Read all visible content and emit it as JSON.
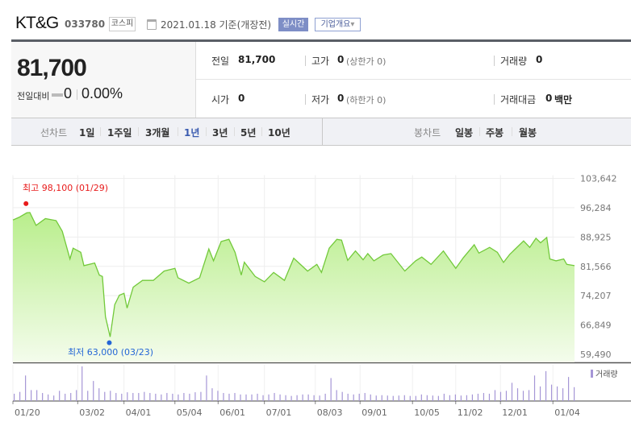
{
  "header": {
    "company": "KT&G",
    "code": "033780",
    "market": "코스피",
    "date_text": "2021.01.18 기준(개장전)",
    "realtime_label": "실시간",
    "overview_label": "기업개요",
    "overview_arrow": "▾",
    "calendar_icon": "calendar-clock-icon"
  },
  "summary": {
    "price": "81,700",
    "change_label": "전일대비",
    "change_value": "0",
    "change_pct": "0.00%",
    "prev_close_label": "전일",
    "prev_close": "81,700",
    "high_label": "고가",
    "high": "0",
    "upper_limit": "(상한가 0)",
    "volume_label": "거래량",
    "volume": "0",
    "open_label": "시가",
    "open": "0",
    "low_label": "저가",
    "low": "0",
    "lower_limit": "(하한가 0)",
    "amount_label": "거래대금",
    "amount": "0",
    "amount_unit": "백만"
  },
  "chart_types": {
    "line_label": "선차트",
    "periods": [
      "1일",
      "1주일",
      "3개월",
      "1년",
      "3년",
      "5년",
      "10년"
    ],
    "active_period": "1년",
    "candle_label": "봉차트",
    "candles": [
      "일봉",
      "주봉",
      "월봉"
    ]
  },
  "chart_data": {
    "type": "area",
    "colors": {
      "line": "#72c93a",
      "fill_top": "#b9ee8c",
      "fill_bottom": "#f4fcec",
      "volume": "#a596d6",
      "high": "#e81b1b",
      "low": "#2466d6"
    },
    "x_start": "2020-01-20",
    "x_end": "2021-01-18",
    "x_ticks": [
      {
        "date": "2020-01-20",
        "label": "01/20"
      },
      {
        "date": "2020-03-02",
        "label": "03/02"
      },
      {
        "date": "2020-04-01",
        "label": "04/01"
      },
      {
        "date": "2020-05-04",
        "label": "05/04"
      },
      {
        "date": "2020-06-01",
        "label": "06/01"
      },
      {
        "date": "2020-07-01",
        "label": "07/01"
      },
      {
        "date": "2020-08-03",
        "label": "08/03"
      },
      {
        "date": "2020-09-01",
        "label": "09/01"
      },
      {
        "date": "2020-10-05",
        "label": "10/05"
      },
      {
        "date": "2020-11-02",
        "label": "11/02"
      },
      {
        "date": "2020-12-01",
        "label": "12/01"
      },
      {
        "date": "2021-01-04",
        "label": "01/04"
      }
    ],
    "y_ticks": [
      "103,642",
      "96,284",
      "88,925",
      "81,566",
      "74,207",
      "66,849",
      "59,490"
    ],
    "ylim": [
      59490,
      103642
    ],
    "grid": true,
    "price_series": [
      [
        "2020-01-20",
        93200
      ],
      [
        "2020-01-24",
        93870
      ],
      [
        "2020-01-29",
        95000
      ],
      [
        "2020-01-31",
        95080
      ],
      [
        "2020-02-04",
        91850
      ],
      [
        "2020-02-10",
        93530
      ],
      [
        "2020-02-17",
        93060
      ],
      [
        "2020-02-21",
        90360
      ],
      [
        "2020-02-26",
        83420
      ],
      [
        "2020-02-28",
        86120
      ],
      [
        "2020-03-04",
        85100
      ],
      [
        "2020-03-06",
        81740
      ],
      [
        "2020-03-13",
        82410
      ],
      [
        "2020-03-16",
        79380
      ],
      [
        "2020-03-18",
        79040
      ],
      [
        "2020-03-20",
        68930
      ],
      [
        "2020-03-23",
        63870
      ],
      [
        "2020-03-26",
        71960
      ],
      [
        "2020-03-29",
        74320
      ],
      [
        "2020-04-01",
        74790
      ],
      [
        "2020-04-03",
        71080
      ],
      [
        "2020-04-07",
        76340
      ],
      [
        "2020-04-13",
        78030
      ],
      [
        "2020-04-20",
        78030
      ],
      [
        "2020-04-27",
        80390
      ],
      [
        "2020-05-04",
        81060
      ],
      [
        "2020-05-06",
        78700
      ],
      [
        "2020-05-13",
        77350
      ],
      [
        "2020-05-20",
        78700
      ],
      [
        "2020-05-26",
        85920
      ],
      [
        "2020-05-29",
        82950
      ],
      [
        "2020-06-03",
        87800
      ],
      [
        "2020-06-08",
        88340
      ],
      [
        "2020-06-12",
        85100
      ],
      [
        "2020-06-16",
        79380
      ],
      [
        "2020-06-18",
        82610
      ],
      [
        "2020-06-25",
        79040
      ],
      [
        "2020-07-01",
        77690
      ],
      [
        "2020-07-07",
        80050
      ],
      [
        "2020-07-14",
        78030
      ],
      [
        "2020-07-20",
        83620
      ],
      [
        "2020-07-29",
        80390
      ],
      [
        "2020-08-04",
        82070
      ],
      [
        "2020-08-07",
        80050
      ],
      [
        "2020-08-12",
        86120
      ],
      [
        "2020-08-17",
        88340
      ],
      [
        "2020-08-20",
        88140
      ],
      [
        "2020-08-24",
        83080
      ],
      [
        "2020-08-29",
        85440
      ],
      [
        "2020-09-03",
        83220
      ],
      [
        "2020-09-06",
        84770
      ],
      [
        "2020-09-10",
        82950
      ],
      [
        "2020-09-16",
        84430
      ],
      [
        "2020-09-21",
        84770
      ],
      [
        "2020-09-30",
        80390
      ],
      [
        "2020-10-07",
        82950
      ],
      [
        "2020-10-11",
        83890
      ],
      [
        "2020-10-17",
        82070
      ],
      [
        "2020-10-25",
        85440
      ],
      [
        "2020-11-02",
        81060
      ],
      [
        "2020-11-07",
        83760
      ],
      [
        "2020-11-14",
        86990
      ],
      [
        "2020-11-17",
        84900
      ],
      [
        "2020-11-24",
        86320
      ],
      [
        "2020-11-29",
        85100
      ],
      [
        "2020-12-03",
        82540
      ],
      [
        "2020-12-07",
        84570
      ],
      [
        "2020-12-16",
        87940
      ],
      [
        "2020-12-20",
        86320
      ],
      [
        "2020-12-24",
        88610
      ],
      [
        "2020-12-27",
        87470
      ],
      [
        "2020-12-31",
        88810
      ],
      [
        "2021-01-02",
        83420
      ],
      [
        "2021-01-06",
        82950
      ],
      [
        "2021-01-11",
        83420
      ],
      [
        "2021-01-13",
        82070
      ],
      [
        "2021-01-18",
        81740
      ]
    ],
    "volume_relative": [
      20,
      25,
      70,
      30,
      30,
      22,
      18,
      15,
      28,
      20,
      22,
      30,
      95,
      28,
      55,
      35,
      25,
      28,
      22,
      20,
      24,
      22,
      22,
      25,
      22,
      20,
      18,
      22,
      20,
      18,
      22,
      20,
      24,
      25,
      70,
      35,
      28,
      22,
      20,
      22,
      18,
      18,
      18,
      20,
      16,
      18,
      22,
      18,
      16,
      14,
      16,
      18,
      18,
      16,
      15,
      20,
      63,
      30,
      25,
      20,
      18,
      20,
      22,
      18,
      15,
      16,
      15,
      14,
      15,
      16,
      14,
      14,
      18,
      16,
      15,
      14,
      20,
      16,
      18,
      15,
      16,
      18,
      20,
      22,
      20,
      30,
      25,
      28,
      50,
      35,
      28,
      30,
      70,
      40,
      82,
      45,
      40,
      35,
      66,
      38
    ],
    "volume_legend": "거래량",
    "high_marker": {
      "label": "최고 98,100 (01/29)",
      "date": "2020-01-29",
      "value": 98100
    },
    "low_marker": {
      "label": "최저 63,000 (03/23)",
      "date": "2020-03-23",
      "value": 63000
    }
  }
}
